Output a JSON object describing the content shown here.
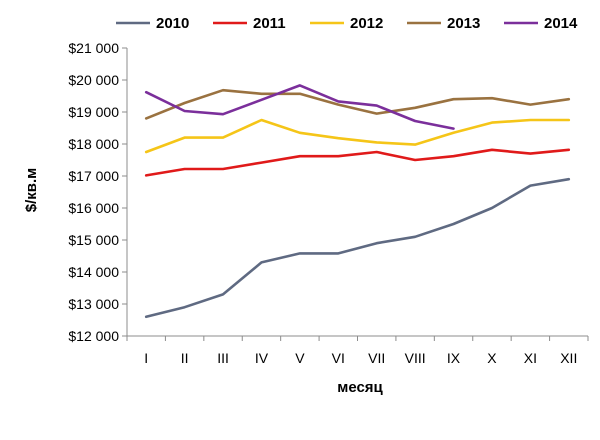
{
  "chart_data": {
    "type": "line",
    "xlabel": "месяц",
    "ylabel": "$/кв.м",
    "ylim": [
      12000,
      21000
    ],
    "ytick_step": 1000,
    "ytick_labels": [
      "$12 000",
      "$13 000",
      "$14 000",
      "$15 000",
      "$16 000",
      "$17 000",
      "$18 000",
      "$19 000",
      "$20 000",
      "$21 000"
    ],
    "categories": [
      "I",
      "II",
      "III",
      "IV",
      "V",
      "VI",
      "VII",
      "VIII",
      "IX",
      "X",
      "XI",
      "XII"
    ],
    "grid": "none",
    "legend_position": "top",
    "series": [
      {
        "name": "2010",
        "color": "#5f6a82",
        "values": [
          12600,
          12900,
          13300,
          14300,
          14580,
          14580,
          14900,
          15100,
          15500,
          16000,
          16700,
          16900
        ]
      },
      {
        "name": "2011",
        "color": "#e01a1a",
        "values": [
          17020,
          17220,
          17220,
          17420,
          17620,
          17620,
          17750,
          17500,
          17620,
          17820,
          17700,
          17820
        ]
      },
      {
        "name": "2012",
        "color": "#f5c518",
        "values": [
          17750,
          18200,
          18200,
          18750,
          18350,
          18180,
          18050,
          17980,
          18350,
          18670,
          18750,
          18750
        ]
      },
      {
        "name": "2013",
        "color": "#9a7240",
        "values": [
          18800,
          19280,
          19680,
          19570,
          19570,
          19230,
          18950,
          19130,
          19400,
          19430,
          19230,
          19400
        ]
      },
      {
        "name": "2014",
        "color": "#7b2f9b",
        "values": [
          19620,
          19030,
          18930,
          19380,
          19830,
          19330,
          19200,
          18720,
          18480,
          null,
          null,
          null
        ]
      }
    ]
  }
}
